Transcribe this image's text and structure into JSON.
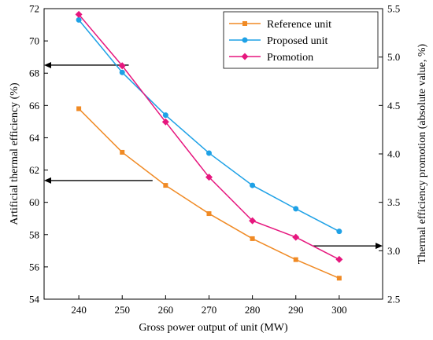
{
  "chart_data": {
    "type": "line",
    "x": [
      240,
      250,
      260,
      270,
      280,
      290,
      300
    ],
    "xlabel": "Gross power output of unit (MW)",
    "ylabel": "Artificial thermal efficiency (%)",
    "y2label": "Thermal efficiency promotion (absolute value, %)",
    "xlim": [
      232,
      310
    ],
    "ylim": [
      54,
      72
    ],
    "y2lim": [
      2.5,
      5.5
    ],
    "xticks": [
      240,
      250,
      260,
      270,
      280,
      290,
      300
    ],
    "yticks": [
      54,
      56,
      58,
      60,
      62,
      64,
      66,
      68,
      70,
      72
    ],
    "y2ticks": [
      2.5,
      3.0,
      3.5,
      4.0,
      4.5,
      5.0,
      5.5
    ],
    "grid": false,
    "legend_position": "top-right",
    "series": [
      {
        "name": "Reference unit",
        "axis": "left",
        "marker": "square",
        "color": "#f08a24",
        "values": [
          65.8,
          63.1,
          61.05,
          59.3,
          57.75,
          56.45,
          55.3
        ]
      },
      {
        "name": "Proposed unit",
        "axis": "left",
        "marker": "circle",
        "color": "#1ea1e6",
        "values": [
          71.3,
          68.05,
          65.4,
          63.05,
          61.05,
          59.6,
          58.2
        ]
      },
      {
        "name": "Promotion",
        "axis": "right",
        "marker": "diamond",
        "color": "#e6177e",
        "values": [
          5.44,
          4.91,
          4.33,
          3.76,
          3.31,
          3.14,
          2.91
        ]
      }
    ],
    "axis_indicators": [
      {
        "direction": "left",
        "axis": "left",
        "y": 68.5,
        "x_from": 251.5,
        "x_to": 232
      },
      {
        "direction": "left",
        "axis": "left",
        "y": 61.35,
        "x_from": 257,
        "x_to": 232
      },
      {
        "direction": "right",
        "axis": "right",
        "y": 3.05,
        "x_from": 294,
        "x_to": 310
      }
    ]
  }
}
